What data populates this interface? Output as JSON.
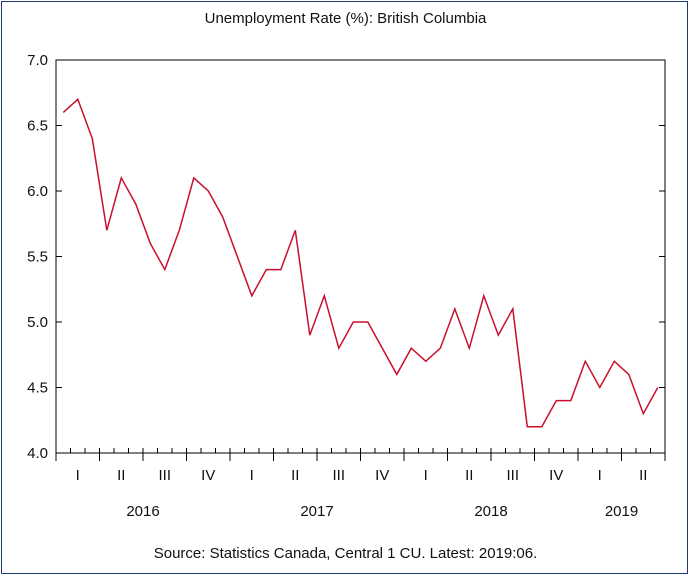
{
  "title": "Unemployment Rate (%): British Columbia",
  "source": "Source: Statistics Canada, Central 1 CU. Latest: 2019:06.",
  "colors": {
    "line": "#c8102e",
    "frame": "#1f3b73",
    "axis": "#000000"
  },
  "chart_data": {
    "type": "line",
    "title": "Unemployment Rate (%): British Columbia",
    "xlabel": "",
    "ylabel": "",
    "ylim": [
      4.0,
      7.0
    ],
    "y_ticks": [
      "4.0",
      "4.5",
      "5.0",
      "5.5",
      "6.0",
      "6.5",
      "7.0"
    ],
    "grid": false,
    "x_start": "2016-01",
    "x_end": "2019-06",
    "quarter_labels": [
      "I",
      "II",
      "III",
      "IV",
      "I",
      "II",
      "III",
      "IV",
      "I",
      "II",
      "III",
      "IV",
      "I",
      "II"
    ],
    "year_labels": [
      "2016",
      "2017",
      "2018",
      "2019"
    ],
    "series": [
      {
        "values": [
          6.6,
          6.7,
          6.4,
          5.7,
          6.1,
          5.9,
          5.6,
          5.4,
          5.7,
          6.1,
          6.0,
          5.8,
          5.5,
          5.2,
          5.4,
          5.4,
          5.7,
          4.9,
          5.2,
          4.8,
          5.0,
          5.0,
          4.8,
          4.6,
          4.8,
          4.7,
          4.8,
          5.1,
          4.8,
          5.2,
          4.9,
          5.1,
          4.2,
          4.2,
          4.4,
          4.4,
          4.7,
          4.5,
          4.7,
          4.6,
          4.3,
          4.5
        ]
      }
    ]
  }
}
